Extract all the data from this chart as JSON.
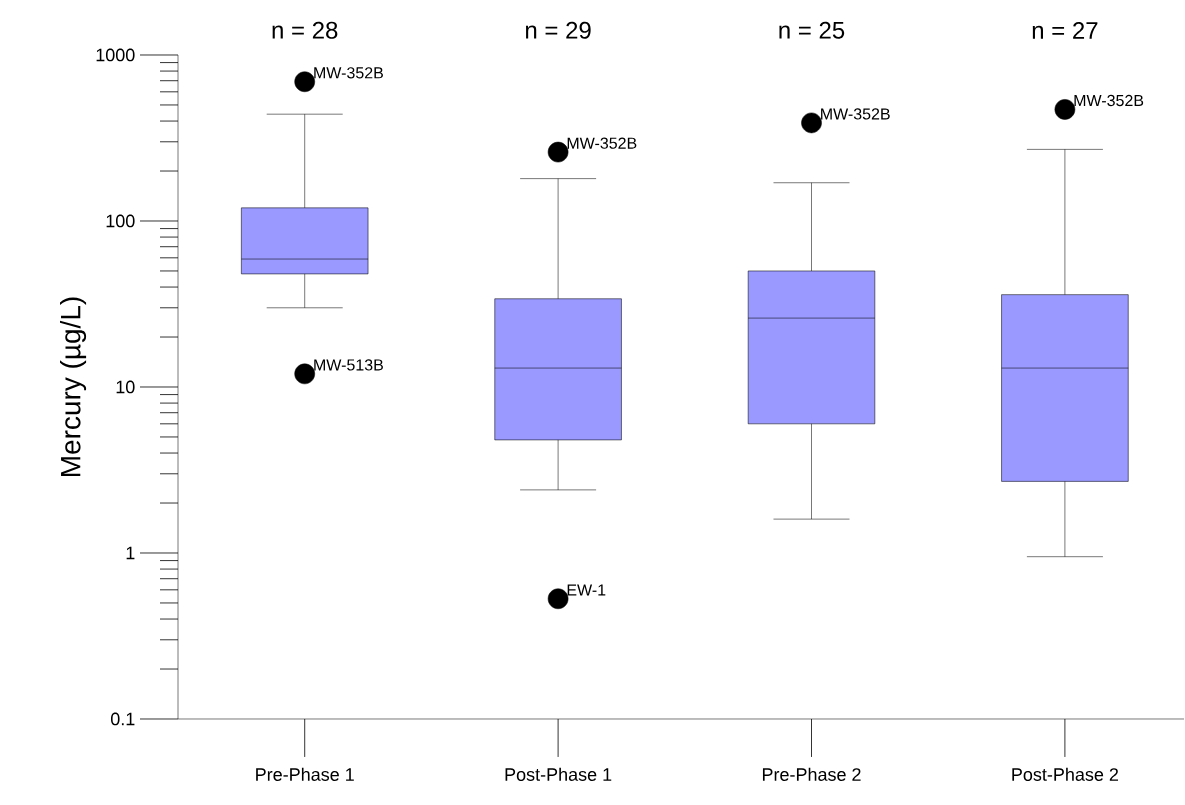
{
  "chart_data": {
    "type": "box",
    "categories": [
      "Pre-Phase 1",
      "Post-Phase 1",
      "Pre-Phase 2",
      "Post-Phase 2"
    ],
    "series": [
      {
        "color": "#9999ff",
        "boxes": [
          {
            "low": 30,
            "q1": 48,
            "median": 59,
            "q3": 120,
            "high": 440,
            "outliers": [
              690,
              12
            ]
          },
          {
            "low": 2.4,
            "q1": 4.8,
            "median": 13,
            "q3": 34,
            "high": 180,
            "outliers": [
              260,
              0.53
            ]
          },
          {
            "low": 1.6,
            "q1": 6,
            "median": 26,
            "q3": 50,
            "high": 170,
            "outliers": [
              390
            ]
          },
          {
            "low": 0.95,
            "q1": 2.7,
            "median": 13,
            "q3": 36,
            "high": 270,
            "outliers": [
              470
            ]
          }
        ]
      }
    ],
    "ylabel": "Mercury (µg/L)",
    "log": "y",
    "ylim": [
      0.1,
      1000
    ],
    "yticks": [
      0.1,
      1,
      10,
      100,
      1000
    ],
    "grid": false,
    "annotations": [
      "n = 28",
      "n = 29",
      "n = 25",
      "n = 27",
      "MW-352B",
      "MW-513B",
      "MW-352B",
      "EW-1",
      "MW-352B",
      "MW-352B"
    ]
  }
}
